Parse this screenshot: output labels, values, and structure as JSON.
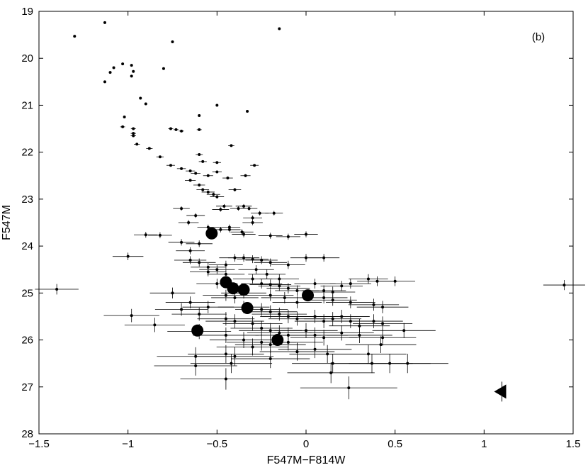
{
  "chart_data": {
    "type": "scatter",
    "title": "",
    "panel_label": "(b)",
    "xlabel": "F547M−F814W",
    "ylabel": "F547M",
    "xlim": [
      -1.5,
      1.5
    ],
    "ylim": [
      28,
      19
    ],
    "y_inverted": true,
    "grid": false,
    "xticks": [
      -1.5,
      -1,
      -0.5,
      0,
      0.5,
      1,
      1.5
    ],
    "xtick_labels": [
      "−1.5",
      "−1",
      "−0.5",
      "0",
      "0.5",
      "1",
      "1.5"
    ],
    "yticks": [
      19,
      20,
      21,
      22,
      23,
      24,
      25,
      26,
      27,
      28
    ],
    "ytick_labels": [
      "19",
      "20",
      "21",
      "22",
      "23",
      "24",
      "25",
      "26",
      "27",
      "28"
    ],
    "series": [
      {
        "marker": "dot",
        "points": [
          [
            -1.13,
            19.24
          ],
          [
            -1.3,
            19.53
          ],
          [
            -0.15,
            19.37
          ],
          [
            -0.75,
            19.65
          ],
          [
            -1.03,
            20.12
          ],
          [
            -1.08,
            20.2
          ],
          [
            -1.1,
            20.3
          ],
          [
            -1.13,
            20.5
          ],
          [
            -0.98,
            20.15
          ],
          [
            -0.97,
            20.28
          ],
          [
            -0.98,
            20.38
          ],
          [
            -0.8,
            20.22
          ],
          [
            -0.93,
            20.85
          ],
          [
            -0.9,
            20.97
          ],
          [
            -0.5,
            21.0
          ],
          [
            -0.6,
            21.22
          ],
          [
            -1.02,
            21.25
          ],
          [
            -0.97,
            21.5
          ],
          [
            -1.03,
            21.46
          ],
          [
            -0.33,
            21.13
          ],
          [
            -0.97,
            21.6
          ],
          [
            -0.97,
            21.65
          ],
          [
            -0.76,
            21.5
          ],
          [
            -0.73,
            21.52
          ],
          [
            -0.7,
            21.55
          ],
          [
            -0.95,
            21.83
          ],
          [
            -0.88,
            21.92
          ],
          [
            -0.6,
            21.52
          ],
          [
            -0.82,
            22.1
          ],
          [
            -0.76,
            22.28
          ],
          [
            -0.6,
            22.05
          ],
          [
            -0.58,
            22.2
          ],
          [
            -0.5,
            22.22
          ],
          [
            -0.7,
            22.35
          ],
          [
            -0.65,
            22.4
          ],
          [
            -0.62,
            22.45
          ],
          [
            -0.55,
            22.5
          ],
          [
            -0.5,
            22.42
          ],
          [
            -0.44,
            22.55
          ],
          [
            -0.34,
            22.5
          ],
          [
            -0.42,
            21.86
          ],
          [
            -0.29,
            22.28
          ],
          [
            -0.65,
            22.6
          ],
          [
            -0.6,
            22.7
          ],
          [
            -0.58,
            22.8
          ],
          [
            -0.55,
            22.85
          ],
          [
            -0.52,
            22.9
          ],
          [
            -0.5,
            22.95
          ],
          [
            -0.4,
            22.8
          ],
          [
            -0.38,
            23.2
          ],
          [
            -0.46,
            23.15
          ],
          [
            -0.48,
            23.22
          ],
          [
            -0.35,
            23.15
          ],
          [
            -0.32,
            23.2
          ],
          [
            -0.26,
            23.3
          ],
          [
            -0.3,
            23.4
          ],
          [
            -0.18,
            23.3
          ],
          [
            -0.62,
            23.35
          ],
          [
            -0.55,
            23.6
          ],
          [
            -0.66,
            23.5
          ],
          [
            -0.43,
            23.6
          ],
          [
            -0.3,
            23.5
          ],
          [
            -0.36,
            23.7
          ],
          [
            -0.7,
            23.2
          ],
          [
            -0.82,
            23.77
          ],
          [
            -0.43,
            23.65
          ],
          [
            -0.48,
            23.65
          ],
          [
            -0.35,
            23.75
          ],
          [
            -0.9,
            23.76
          ],
          [
            -0.7,
            23.92
          ],
          [
            -0.6,
            23.95
          ],
          [
            -0.2,
            23.78
          ],
          [
            -0.1,
            23.8
          ],
          [
            0.0,
            23.75
          ],
          [
            -0.65,
            24.1
          ],
          [
            -0.65,
            24.3
          ],
          [
            -0.6,
            24.35
          ],
          [
            -0.55,
            24.45
          ],
          [
            -0.5,
            24.5
          ],
          [
            -0.45,
            24.6
          ],
          [
            -0.5,
            24.8
          ],
          [
            -0.55,
            24.55
          ],
          [
            -1.0,
            24.22
          ],
          [
            -0.4,
            24.25
          ],
          [
            -0.35,
            24.25
          ],
          [
            -0.3,
            24.28
          ],
          [
            -0.25,
            24.3
          ],
          [
            -0.2,
            24.35
          ],
          [
            -0.1,
            24.4
          ],
          [
            0.0,
            24.25
          ],
          [
            0.1,
            24.25
          ],
          [
            -0.45,
            24.4
          ],
          [
            -0.28,
            24.5
          ],
          [
            -0.22,
            24.6
          ],
          [
            -0.15,
            24.7
          ],
          [
            -0.3,
            24.7
          ],
          [
            -0.25,
            24.8
          ],
          [
            -0.2,
            24.82
          ],
          [
            -0.15,
            24.85
          ],
          [
            -0.1,
            24.9
          ],
          [
            -0.05,
            24.95
          ],
          [
            0.05,
            24.8
          ],
          [
            0.1,
            24.95
          ],
          [
            0.15,
            24.98
          ],
          [
            0.2,
            24.85
          ],
          [
            0.25,
            24.8
          ],
          [
            0.35,
            24.7
          ],
          [
            0.4,
            24.75
          ],
          [
            0.5,
            24.75
          ],
          [
            -0.35,
            25.0
          ],
          [
            -0.45,
            25.05
          ],
          [
            -0.4,
            25.1
          ],
          [
            -1.4,
            24.92
          ],
          [
            1.45,
            24.83
          ],
          [
            -0.75,
            25.0
          ],
          [
            -0.65,
            25.2
          ],
          [
            -0.55,
            25.3
          ],
          [
            -0.6,
            25.45
          ],
          [
            -0.7,
            25.35
          ],
          [
            -0.2,
            25.05
          ],
          [
            -0.12,
            25.1
          ],
          [
            -0.05,
            25.2
          ],
          [
            0.1,
            25.1
          ],
          [
            0.15,
            25.15
          ],
          [
            0.25,
            25.2
          ],
          [
            0.38,
            25.25
          ],
          [
            0.43,
            25.3
          ],
          [
            -0.35,
            25.3
          ],
          [
            -0.25,
            25.35
          ],
          [
            -0.2,
            25.4
          ],
          [
            -0.15,
            25.45
          ],
          [
            -0.1,
            25.5
          ],
          [
            -0.05,
            25.55
          ],
          [
            0.05,
            25.5
          ],
          [
            0.1,
            25.6
          ],
          [
            0.15,
            25.55
          ],
          [
            0.2,
            25.5
          ],
          [
            0.25,
            25.6
          ],
          [
            0.3,
            25.7
          ],
          [
            0.38,
            25.6
          ],
          [
            0.43,
            25.65
          ],
          [
            -0.98,
            25.48
          ],
          [
            -0.85,
            25.68
          ],
          [
            -0.45,
            25.55
          ],
          [
            -0.4,
            25.6
          ],
          [
            -0.3,
            25.65
          ],
          [
            -0.25,
            25.75
          ],
          [
            -0.2,
            25.8
          ],
          [
            -0.15,
            25.85
          ],
          [
            -0.1,
            25.9
          ],
          [
            0.0,
            25.8
          ],
          [
            0.05,
            25.9
          ],
          [
            0.1,
            25.95
          ],
          [
            0.2,
            25.85
          ],
          [
            0.3,
            25.9
          ],
          [
            0.43,
            25.95
          ],
          [
            0.55,
            25.8
          ],
          [
            -0.6,
            25.82
          ],
          [
            -0.45,
            25.9
          ],
          [
            -0.35,
            26.0
          ],
          [
            -0.25,
            26.05
          ],
          [
            -0.2,
            26.1
          ],
          [
            -0.1,
            26.05
          ],
          [
            -0.05,
            26.25
          ],
          [
            0.05,
            26.2
          ],
          [
            0.12,
            26.3
          ],
          [
            0.35,
            26.3
          ],
          [
            0.42,
            26.1
          ],
          [
            -0.62,
            26.35
          ],
          [
            -0.45,
            26.3
          ],
          [
            -0.42,
            26.5
          ],
          [
            -0.4,
            26.35
          ],
          [
            -0.3,
            26.15
          ],
          [
            -0.2,
            26.4
          ],
          [
            -0.05,
            26.25
          ],
          [
            0.15,
            26.5
          ],
          [
            0.37,
            26.5
          ],
          [
            0.47,
            26.5
          ],
          [
            0.57,
            26.5
          ],
          [
            -0.62,
            26.55
          ],
          [
            0.14,
            26.7
          ],
          [
            -0.45,
            26.83
          ],
          [
            0.24,
            27.02
          ]
        ]
      },
      {
        "marker": "large-circle",
        "points": [
          [
            -0.53,
            23.73
          ],
          [
            -0.45,
            24.77
          ],
          [
            -0.41,
            24.9
          ],
          [
            -0.35,
            24.93
          ],
          [
            -0.61,
            25.8
          ],
          [
            0.01,
            25.05
          ],
          [
            -0.33,
            25.32
          ],
          [
            -0.16,
            26.0
          ]
        ]
      },
      {
        "marker": "left-triangle",
        "points": [
          [
            1.1,
            27.1
          ]
        ]
      }
    ]
  }
}
